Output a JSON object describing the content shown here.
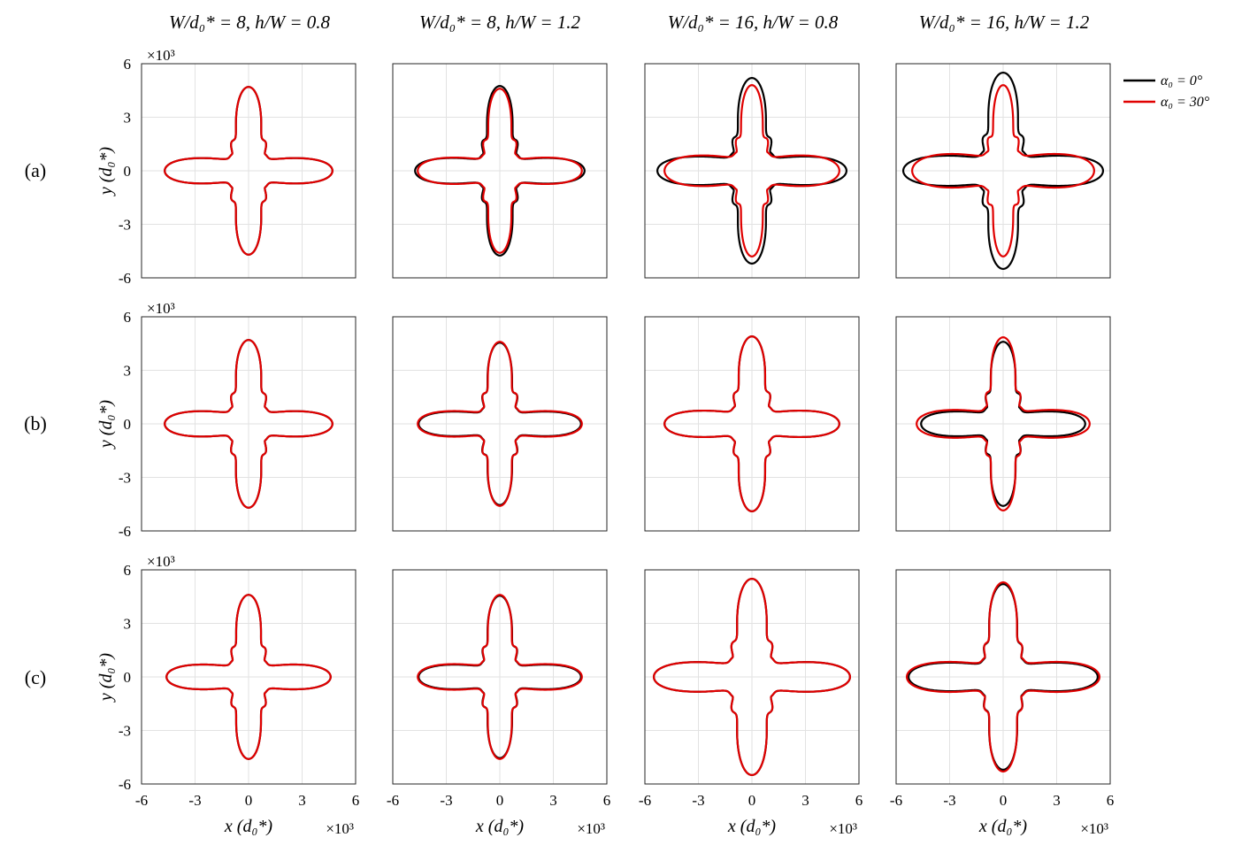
{
  "chart_data": {
    "type": "line",
    "title": "",
    "column_titles": [
      "W/d₀* = 8, h/W = 0.8",
      "W/d₀* = 8, h/W = 1.2",
      "W/d₀* = 16, h/W = 0.8",
      "W/d₀* = 16, h/W = 1.2"
    ],
    "row_labels": [
      "(a)",
      "(b)",
      "(c)"
    ],
    "xlabel": "x (d₀*)",
    "ylabel": "y (d₀*)",
    "scale_label": "×10³",
    "xlim": [
      -6,
      6
    ],
    "ylim": [
      -6,
      6
    ],
    "xticks": [
      "-6",
      "-3",
      "0",
      "3",
      "6"
    ],
    "yticks": [
      "6",
      "3",
      "0",
      "-3",
      "-6"
    ],
    "grid": true,
    "legend_position": "top-right",
    "series": [
      {
        "name": "α₀ = 0°",
        "color": "#000000"
      },
      {
        "name": "α₀ = 30°",
        "color": "#e00000"
      }
    ],
    "panels": [
      {
        "row": 0,
        "col": 0,
        "black": {
          "x": 4.7,
          "y": 4.7,
          "rot": 0
        },
        "red": {
          "x": 4.7,
          "y": 4.7,
          "rot": 0
        },
        "inner": [
          0.95,
          0.95
        ]
      },
      {
        "row": 0,
        "col": 1,
        "black": {
          "x": 4.75,
          "y": 4.75,
          "rot": 0
        },
        "red": {
          "x": 4.6,
          "y": 4.6,
          "rot": 2
        },
        "inner": [
          1.0,
          0.95
        ]
      },
      {
        "row": 0,
        "col": 2,
        "black": {
          "x": 5.3,
          "y": 5.2,
          "rot": 0
        },
        "red": {
          "x": 4.9,
          "y": 4.8,
          "rot": 5
        },
        "inner": [
          1.05,
          1.0
        ]
      },
      {
        "row": 0,
        "col": 3,
        "black": {
          "x": 5.6,
          "y": 5.5,
          "rot": 0
        },
        "red": {
          "x": 5.1,
          "y": 4.8,
          "rot": 7
        },
        "inner": [
          1.1,
          1.0
        ]
      },
      {
        "row": 1,
        "col": 0,
        "black": {
          "x": 4.7,
          "y": 4.7,
          "rot": 0
        },
        "red": {
          "x": 4.7,
          "y": 4.7,
          "rot": 0
        },
        "inner": [
          0.95,
          0.95
        ]
      },
      {
        "row": 1,
        "col": 1,
        "black": {
          "x": 4.55,
          "y": 4.55,
          "rot": 0
        },
        "red": {
          "x": 4.6,
          "y": 4.6,
          "rot": 1
        },
        "inner": [
          1.05,
          0.95
        ]
      },
      {
        "row": 1,
        "col": 2,
        "black": {
          "x": 4.9,
          "y": 4.9,
          "rot": 0
        },
        "red": {
          "x": 4.9,
          "y": 4.9,
          "rot": 0
        },
        "inner": [
          1.0,
          1.0
        ]
      },
      {
        "row": 1,
        "col": 3,
        "black": {
          "x": 4.6,
          "y": 4.6,
          "rot": 0
        },
        "red": {
          "x": 4.85,
          "y": 4.85,
          "rot": 2
        },
        "inner": [
          1.0,
          1.0
        ]
      },
      {
        "row": 2,
        "col": 0,
        "black": {
          "x": 4.6,
          "y": 4.6,
          "rot": 0
        },
        "red": {
          "x": 4.6,
          "y": 4.6,
          "rot": 0
        },
        "inner": [
          0.95,
          0.95
        ]
      },
      {
        "row": 2,
        "col": 1,
        "black": {
          "x": 4.55,
          "y": 4.55,
          "rot": 0
        },
        "red": {
          "x": 4.6,
          "y": 4.6,
          "rot": 1
        },
        "inner": [
          1.0,
          0.95
        ]
      },
      {
        "row": 2,
        "col": 2,
        "black": {
          "x": 5.5,
          "y": 5.5,
          "rot": 0
        },
        "red": {
          "x": 5.5,
          "y": 5.5,
          "rot": 0
        },
        "inner": [
          1.1,
          1.1
        ]
      },
      {
        "row": 2,
        "col": 3,
        "black": {
          "x": 5.3,
          "y": 5.2,
          "rot": 0
        },
        "red": {
          "x": 5.4,
          "y": 5.3,
          "rot": 1
        },
        "inner": [
          1.0,
          1.0
        ]
      }
    ]
  }
}
